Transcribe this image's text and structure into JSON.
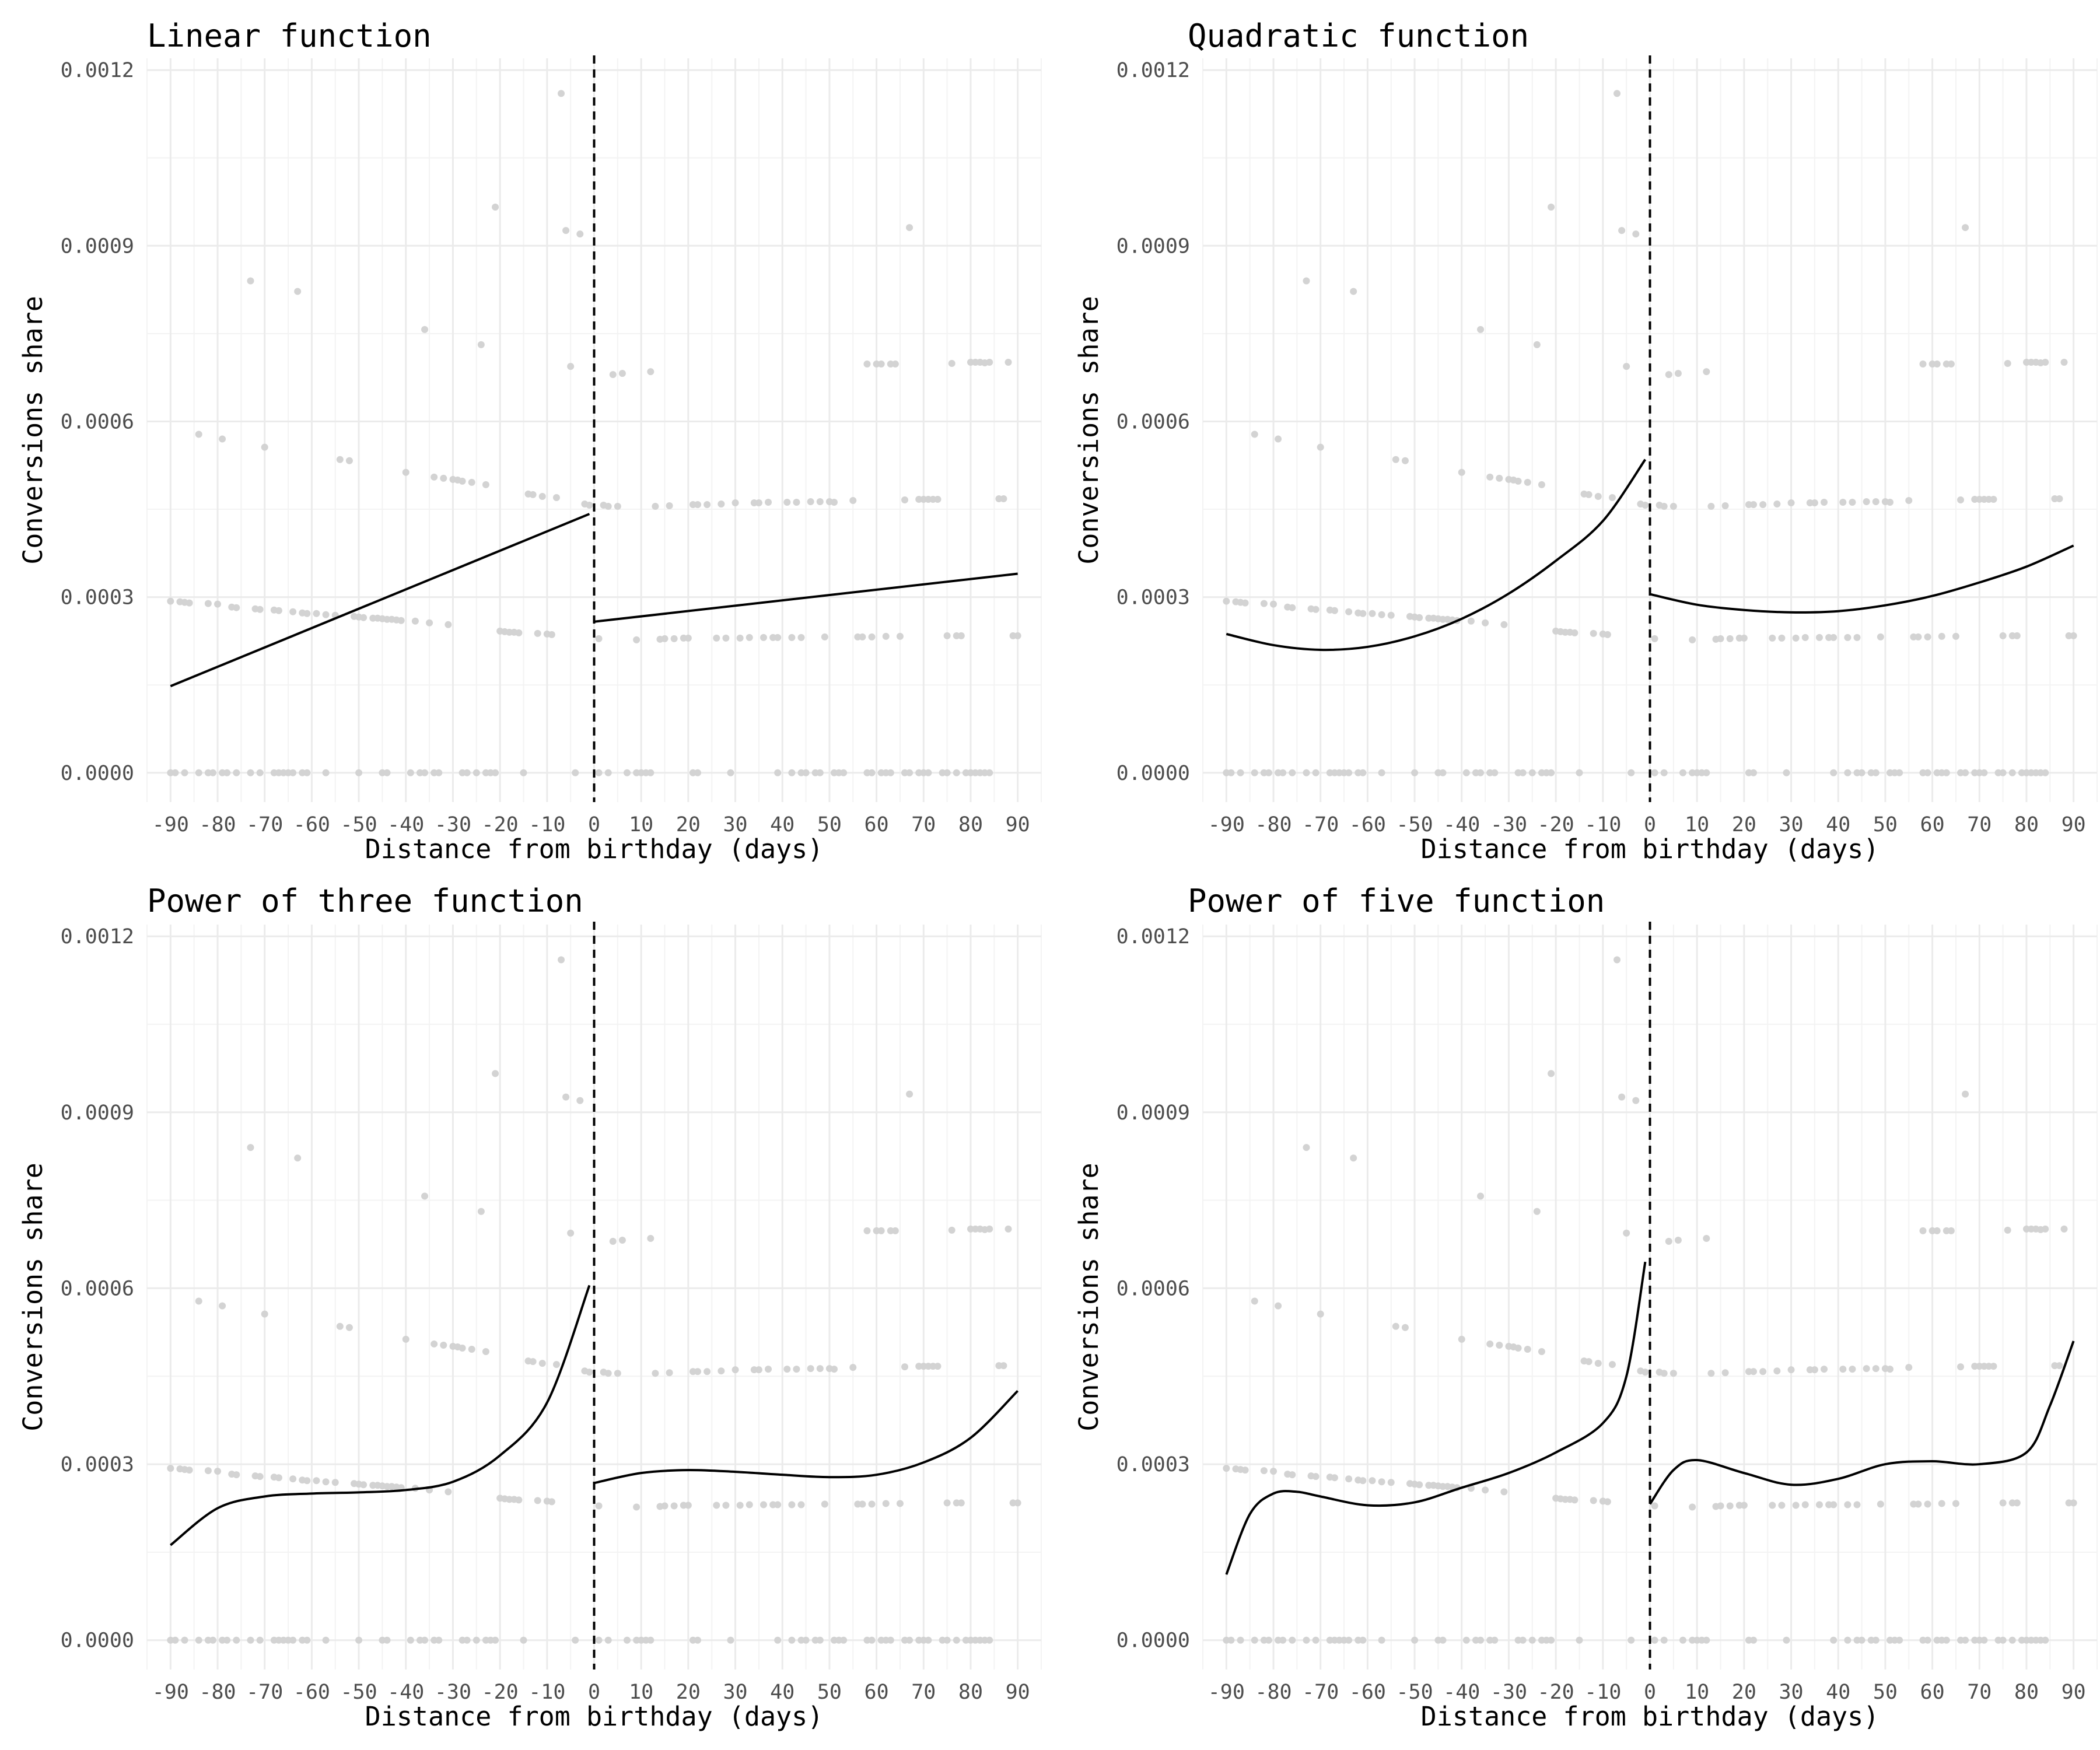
{
  "chart_data": [
    {
      "type": "scatter",
      "title": "Linear function",
      "xlabel": "Distance from birthday (days)",
      "ylabel": "Conversions share",
      "fit": "linear",
      "fit_left": [
        [
          -90,
          0.000148
        ],
        [
          -1,
          0.000442
        ]
      ],
      "fit_right": [
        [
          0,
          0.000258
        ],
        [
          90,
          0.00034
        ]
      ]
    },
    {
      "type": "scatter",
      "title": "Quadratic function",
      "xlabel": "Distance from birthday (days)",
      "ylabel": "Conversions share",
      "fit": "quadratic",
      "fit_left": [
        [
          -90,
          0.000237
        ],
        [
          -80,
          0.000218
        ],
        [
          -70,
          0.00021
        ],
        [
          -60,
          0.000215
        ],
        [
          -50,
          0.000233
        ],
        [
          -40,
          0.000263
        ],
        [
          -30,
          0.000306
        ],
        [
          -20,
          0.000362
        ],
        [
          -10,
          0.00043
        ],
        [
          -1,
          0.000535
        ]
      ],
      "fit_right": [
        [
          0,
          0.000305
        ],
        [
          10,
          0.000287
        ],
        [
          20,
          0.000278
        ],
        [
          30,
          0.000274
        ],
        [
          40,
          0.000276
        ],
        [
          50,
          0.000286
        ],
        [
          60,
          0.000302
        ],
        [
          70,
          0.000325
        ],
        [
          80,
          0.000352
        ],
        [
          90,
          0.000388
        ]
      ]
    },
    {
      "type": "scatter",
      "title": "Power of three function",
      "xlabel": "Distance from birthday (days)",
      "ylabel": "Conversions share",
      "fit": "cubic",
      "fit_left": [
        [
          -90,
          0.000162
        ],
        [
          -80,
          0.000225
        ],
        [
          -70,
          0.000245
        ],
        [
          -60,
          0.00025
        ],
        [
          -50,
          0.000252
        ],
        [
          -40,
          0.000256
        ],
        [
          -30,
          0.00027
        ],
        [
          -20,
          0.000315
        ],
        [
          -10,
          0.000405
        ],
        [
          -1,
          0.000605
        ]
      ],
      "fit_right": [
        [
          0,
          0.000268
        ],
        [
          10,
          0.000285
        ],
        [
          20,
          0.00029
        ],
        [
          30,
          0.000287
        ],
        [
          40,
          0.000282
        ],
        [
          50,
          0.000278
        ],
        [
          60,
          0.000282
        ],
        [
          70,
          0.000303
        ],
        [
          80,
          0.000345
        ],
        [
          90,
          0.000425
        ]
      ]
    },
    {
      "type": "scatter",
      "title": "Power of five function",
      "xlabel": "Distance from birthday (days)",
      "ylabel": "Conversions share",
      "fit": "quintic",
      "fit_left": [
        [
          -90,
          0.000112
        ],
        [
          -85,
          0.000215
        ],
        [
          -80,
          0.00025
        ],
        [
          -75,
          0.000253
        ],
        [
          -70,
          0.000245
        ],
        [
          -60,
          0.00023
        ],
        [
          -50,
          0.000235
        ],
        [
          -40,
          0.00026
        ],
        [
          -30,
          0.000285
        ],
        [
          -20,
          0.00032
        ],
        [
          -10,
          0.00037
        ],
        [
          -5,
          0.00045
        ],
        [
          -1,
          0.000645
        ]
      ],
      "fit_right": [
        [
          0,
          0.000232
        ],
        [
          5,
          0.00029
        ],
        [
          10,
          0.000307
        ],
        [
          20,
          0.000285
        ],
        [
          30,
          0.000265
        ],
        [
          40,
          0.000275
        ],
        [
          50,
          0.0003
        ],
        [
          60,
          0.000305
        ],
        [
          70,
          0.0003
        ],
        [
          80,
          0.00032
        ],
        [
          85,
          0.0004
        ],
        [
          90,
          0.00051
        ]
      ]
    }
  ],
  "shared": {
    "x_ticks": [
      -90,
      -80,
      -70,
      -60,
      -50,
      -40,
      -30,
      -20,
      -10,
      0,
      10,
      20,
      30,
      40,
      50,
      60,
      70,
      80,
      90
    ],
    "y_ticks": [
      "0.0000",
      "0.0003",
      "0.0006",
      "0.0009",
      "0.0012"
    ],
    "xlim": [
      -95,
      95
    ],
    "ylim": [
      -5e-05,
      0.00122
    ],
    "cutoff_x": 0,
    "line_color": "#000000",
    "point_color": "#d3d3d3",
    "observations": [
      [
        -90,
        0.000293
      ],
      [
        -88,
        0.000292
      ],
      [
        -87,
        0.000291
      ],
      [
        -86,
        0.00029
      ],
      [
        -84,
        0.000578
      ],
      [
        -82,
        0.000289
      ],
      [
        -80,
        0.000288
      ],
      [
        -79,
        0.00057
      ],
      [
        -77,
        0.000283
      ],
      [
        -76,
        0.000282
      ],
      [
        -73,
        0.00084
      ],
      [
        -72,
        0.00028
      ],
      [
        -71,
        0.000279
      ],
      [
        -70,
        0.000556
      ],
      [
        -68,
        0.000278
      ],
      [
        -67,
        0.000277
      ],
      [
        -64,
        0.000275
      ],
      [
        -63,
        0.000822
      ],
      [
        -62,
        0.000273
      ],
      [
        -61,
        0.000272
      ],
      [
        -59,
        0.000272
      ],
      [
        -57,
        0.00027
      ],
      [
        -55,
        0.000269
      ],
      [
        -54,
        0.000535
      ],
      [
        -52,
        0.000533
      ],
      [
        -51,
        0.000267
      ],
      [
        -50,
        0.000266
      ],
      [
        -49,
        0.000265
      ],
      [
        -47,
        0.000264
      ],
      [
        -46,
        0.000264
      ],
      [
        -45,
        0.000263
      ],
      [
        -44,
        0.000262
      ],
      [
        -43,
        0.000262
      ],
      [
        -42,
        0.000261
      ],
      [
        -41,
        0.00026
      ],
      [
        -40,
        0.000513
      ],
      [
        -38,
        0.000259
      ],
      [
        -36,
        0.000757
      ],
      [
        -35,
        0.000256
      ],
      [
        -34,
        0.000505
      ],
      [
        -32,
        0.000503
      ],
      [
        -31,
        0.000253
      ],
      [
        -30,
        0.000501
      ],
      [
        -29,
        0.0005
      ],
      [
        -28,
        0.000498
      ],
      [
        -26,
        0.000496
      ],
      [
        -24,
        0.000731
      ],
      [
        -23,
        0.000492
      ],
      [
        -21,
        0.000966
      ],
      [
        -20,
        0.000242
      ],
      [
        -19,
        0.000241
      ],
      [
        -18,
        0.00024
      ],
      [
        -17,
        0.00024
      ],
      [
        -16,
        0.000239
      ],
      [
        -14,
        0.000476
      ],
      [
        -13,
        0.000475
      ],
      [
        -12,
        0.000238
      ],
      [
        -11,
        0.000472
      ],
      [
        -10,
        0.000237
      ],
      [
        -9,
        0.000236
      ],
      [
        -8,
        0.00047
      ],
      [
        -7,
        0.00116
      ],
      [
        -6,
        0.000926
      ],
      [
        -5,
        0.000694
      ],
      [
        -3,
        0.00092
      ],
      [
        -2,
        0.000459
      ],
      [
        -1,
        0.000457
      ],
      [
        1,
        0.000229
      ],
      [
        2,
        0.000457
      ],
      [
        3,
        0.000455
      ],
      [
        4,
        0.00068
      ],
      [
        5,
        0.000455
      ],
      [
        6,
        0.000682
      ],
      [
        9,
        0.000227
      ],
      [
        12,
        0.000685
      ],
      [
        13,
        0.000455
      ],
      [
        14,
        0.000228
      ],
      [
        15,
        0.000229
      ],
      [
        16,
        0.000456
      ],
      [
        17,
        0.000229
      ],
      [
        19,
        0.00023
      ],
      [
        20,
        0.00023
      ],
      [
        21,
        0.000458
      ],
      [
        22,
        0.000458
      ],
      [
        24,
        0.000458
      ],
      [
        26,
        0.00023
      ],
      [
        27,
        0.000459
      ],
      [
        28,
        0.00023
      ],
      [
        30,
        0.000461
      ],
      [
        31,
        0.00023
      ],
      [
        33,
        0.000231
      ],
      [
        34,
        0.000461
      ],
      [
        35,
        0.000461
      ],
      [
        36,
        0.000231
      ],
      [
        37,
        0.000462
      ],
      [
        38,
        0.000231
      ],
      [
        39,
        0.000231
      ],
      [
        41,
        0.000462
      ],
      [
        42,
        0.000231
      ],
      [
        43,
        0.000462
      ],
      [
        44,
        0.000231
      ],
      [
        46,
        0.000463
      ],
      [
        48,
        0.000463
      ],
      [
        49,
        0.000232
      ],
      [
        50,
        0.000463
      ],
      [
        51,
        0.000462
      ],
      [
        55,
        0.000465
      ],
      [
        56,
        0.000232
      ],
      [
        57,
        0.000232
      ],
      [
        58,
        0.000698
      ],
      [
        59,
        0.000232
      ],
      [
        60,
        0.000698
      ],
      [
        61,
        0.000698
      ],
      [
        62,
        0.000233
      ],
      [
        63,
        0.000698
      ],
      [
        64,
        0.000698
      ],
      [
        65,
        0.000233
      ],
      [
        66,
        0.000466
      ],
      [
        67,
        0.000931
      ],
      [
        69,
        0.000467
      ],
      [
        70,
        0.000467
      ],
      [
        71,
        0.000467
      ],
      [
        72,
        0.000467
      ],
      [
        73,
        0.000467
      ],
      [
        75,
        0.000234
      ],
      [
        76,
        0.000699
      ],
      [
        77,
        0.000234
      ],
      [
        78,
        0.000234
      ],
      [
        80,
        0.000701
      ],
      [
        81,
        0.000701
      ],
      [
        82,
        0.000701
      ],
      [
        83,
        0.0007
      ],
      [
        84,
        0.000701
      ],
      [
        86,
        0.000468
      ],
      [
        87,
        0.000468
      ],
      [
        88,
        0.000701
      ],
      [
        89,
        0.000234
      ],
      [
        90,
        0.000234
      ],
      [
        -90,
        0
      ],
      [
        -89,
        0
      ],
      [
        -87,
        0
      ],
      [
        -84,
        0
      ],
      [
        -82,
        0
      ],
      [
        -81,
        0
      ],
      [
        -79,
        0
      ],
      [
        -78,
        0
      ],
      [
        -76,
        0
      ],
      [
        -73,
        0
      ],
      [
        -71,
        0
      ],
      [
        -68,
        0
      ],
      [
        -67,
        0
      ],
      [
        -66,
        0
      ],
      [
        -65,
        0
      ],
      [
        -64,
        0
      ],
      [
        -62,
        0
      ],
      [
        -61,
        0
      ],
      [
        -57,
        0
      ],
      [
        -50,
        0
      ],
      [
        -45,
        0
      ],
      [
        -44,
        0
      ],
      [
        -39,
        0
      ],
      [
        -37,
        0
      ],
      [
        -36,
        0
      ],
      [
        -34,
        0
      ],
      [
        -33,
        0
      ],
      [
        -28,
        0
      ],
      [
        -27,
        0
      ],
      [
        -25,
        0
      ],
      [
        -23,
        0
      ],
      [
        -22,
        0
      ],
      [
        -21,
        0
      ],
      [
        -15,
        0
      ],
      [
        -4,
        0
      ],
      [
        1,
        0
      ],
      [
        3,
        0
      ],
      [
        7,
        0
      ],
      [
        9,
        0
      ],
      [
        10,
        0
      ],
      [
        11,
        0
      ],
      [
        12,
        0
      ],
      [
        21,
        0
      ],
      [
        22,
        0
      ],
      [
        29,
        0
      ],
      [
        39,
        0
      ],
      [
        42,
        0
      ],
      [
        44,
        0
      ],
      [
        45,
        0
      ],
      [
        47,
        0
      ],
      [
        48,
        0
      ],
      [
        51,
        0
      ],
      [
        52,
        0
      ],
      [
        53,
        0
      ],
      [
        58,
        0
      ],
      [
        59,
        0
      ],
      [
        61,
        0
      ],
      [
        62,
        0
      ],
      [
        63,
        0
      ],
      [
        66,
        0
      ],
      [
        67,
        0
      ],
      [
        69,
        0
      ],
      [
        70,
        0
      ],
      [
        71,
        0
      ],
      [
        74,
        0
      ],
      [
        75,
        0
      ],
      [
        77,
        0
      ],
      [
        79,
        0
      ],
      [
        80,
        0
      ],
      [
        81,
        0
      ],
      [
        82,
        0
      ],
      [
        83,
        0
      ],
      [
        84,
        0
      ]
    ]
  }
}
